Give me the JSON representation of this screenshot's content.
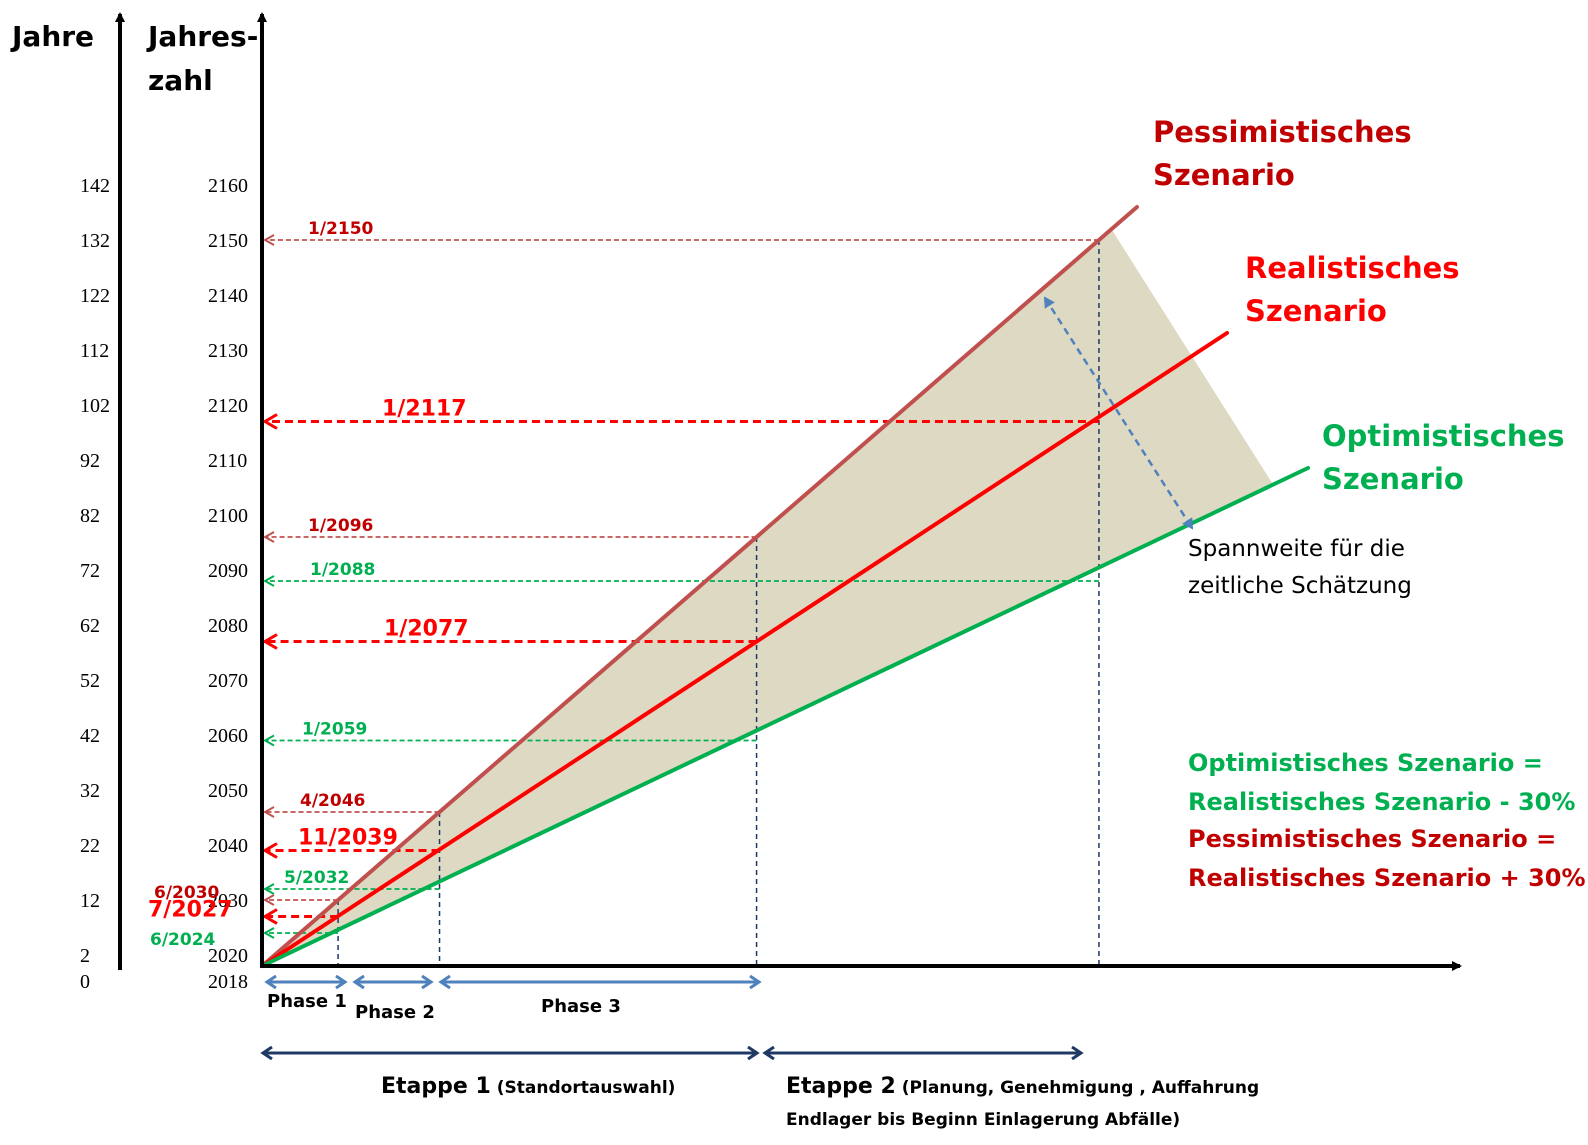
{
  "chart_data": {
    "type": "line",
    "title": "",
    "axes": {
      "years_label": "Jahre",
      "year_label_line1": "Jahres-",
      "year_label_line2": "zahl",
      "years_ticks": [
        "0",
        "2",
        "12",
        "22",
        "32",
        "42",
        "52",
        "62",
        "72",
        "82",
        "92",
        "102",
        "112",
        "122",
        "132",
        "142"
      ],
      "year_ticks": [
        "2018",
        "2020",
        "2030",
        "2040",
        "2050",
        "2060",
        "2070",
        "2080",
        "2090",
        "2100",
        "2110",
        "2120",
        "2130",
        "2140",
        "2150",
        "2160"
      ],
      "ylim": [
        2018,
        2160
      ]
    },
    "series": [
      {
        "name": "Pessimistisches Szenario",
        "color": "#c0504d",
        "x": [
          2018,
          2030,
          2046,
          2096,
          2150
        ],
        "y": [
          2018,
          2030,
          2046,
          2096,
          2150
        ]
      },
      {
        "name": "Realistisches Szenario",
        "color": "#ff0000",
        "x": [
          2018,
          2027,
          2039,
          2077,
          2117
        ],
        "y": [
          2018,
          2027,
          2039,
          2077,
          2117
        ]
      },
      {
        "name": "Optimistisches Szenario",
        "color": "#00b050",
        "x": [
          2018,
          2024,
          2032,
          2059,
          2088
        ],
        "y": [
          2018,
          2024,
          2032,
          2059,
          2088
        ]
      }
    ],
    "milestones": [
      {
        "label": "1/2150",
        "year": 2150,
        "scenario": "pess",
        "size": "small"
      },
      {
        "label": "1/2117",
        "year": 2117,
        "scenario": "real",
        "size": "big"
      },
      {
        "label": "1/2096",
        "year": 2096,
        "scenario": "pess",
        "size": "small"
      },
      {
        "label": "1/2088",
        "year": 2088,
        "scenario": "opt",
        "size": "small"
      },
      {
        "label": "1/2077",
        "year": 2077,
        "scenario": "real",
        "size": "big"
      },
      {
        "label": "1/2059",
        "year": 2059,
        "scenario": "opt",
        "size": "small"
      },
      {
        "label": "4/2046",
        "year": 2046,
        "scenario": "pess",
        "size": "small"
      },
      {
        "label": "11/2039",
        "year": 2039,
        "scenario": "real",
        "size": "big"
      },
      {
        "label": "5/2032",
        "year": 2032,
        "scenario": "opt",
        "size": "small"
      },
      {
        "label": "6/2030",
        "year": 2030,
        "scenario": "pess",
        "size": "small"
      },
      {
        "label": "7/2027",
        "year": 2027,
        "scenario": "real",
        "size": "big"
      },
      {
        "label": "6/2024",
        "year": 2024,
        "scenario": "opt",
        "size": "small"
      }
    ],
    "phases": [
      "Phase 1",
      "Phase 2",
      "Phase 3"
    ],
    "etappen": [
      {
        "title": "Etappe 1",
        "detail": "(Standortauswahl)"
      },
      {
        "title": "Etappe 2",
        "detail": "(Planung, Genehmigung , Auffahrung",
        "detail2": "Endlager bis Beginn Einlagerung Abfälle)"
      }
    ],
    "scenario_labels": {
      "pess_1": "Pessimistisches",
      "pess_2": "Szenario",
      "real_1": "Realistisches",
      "real_2": "Szenario",
      "opt_1": "Optimistisches",
      "opt_2": "Szenario"
    },
    "spread_note": [
      "Spannweite für die",
      "zeitliche Schätzung"
    ],
    "formulas": [
      {
        "text": "Optimistisches  Szenario =",
        "color": "#00b050"
      },
      {
        "text": "Realistisches Szenario - 30%",
        "color": "#00b050"
      },
      {
        "text": "Pessimistisches Szenario =",
        "color": "#c00000"
      },
      {
        "text": "Realistisches Szenario + 30%",
        "color": "#c00000"
      }
    ],
    "colors": {
      "pess": "#c0504d",
      "pess_text": "#c00000",
      "real": "#ff0000",
      "opt": "#00b050",
      "band": "#ddd9c3",
      "phase_arrow": "#4f81bd",
      "etappe_arrow": "#1f3864"
    }
  }
}
